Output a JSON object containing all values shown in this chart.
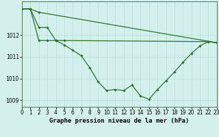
{
  "title": "Graphe pression niveau de la mer (hPa)",
  "background_color": "#d4f0ed",
  "grid_color": "#b8ddd8",
  "line_color": "#2d6e2d",
  "series": {
    "line_flat": {
      "x": [
        0,
        1,
        2,
        23
      ],
      "y": [
        1013.2,
        1013.2,
        1013.05,
        1011.65
      ]
    },
    "line_mid": {
      "x": [
        0,
        1,
        2,
        3,
        4,
        5,
        22,
        23
      ],
      "y": [
        1013.2,
        1013.2,
        1012.35,
        1012.35,
        1011.75,
        1011.75,
        1011.7,
        1011.65
      ]
    },
    "line_dip": [
      1013.2,
      1013.2,
      1011.75,
      1011.75,
      1011.75,
      1011.55,
      1011.3,
      1011.05,
      1010.5,
      1009.85,
      1009.45,
      1009.5,
      1009.45,
      1009.7,
      1009.2,
      1009.05,
      1009.5,
      1009.9,
      1010.3,
      1010.75,
      1011.15,
      1011.5,
      1011.7,
      1011.65
    ]
  },
  "xlim": [
    0,
    23
  ],
  "ylim": [
    1008.7,
    1013.55
  ],
  "yticks": [
    1009,
    1010,
    1011,
    1012
  ],
  "xticks": [
    0,
    1,
    2,
    3,
    4,
    5,
    6,
    7,
    8,
    9,
    10,
    11,
    12,
    13,
    14,
    15,
    16,
    17,
    18,
    19,
    20,
    21,
    22,
    23
  ],
  "tick_fontsize": 5.5,
  "title_fontsize": 6.5
}
